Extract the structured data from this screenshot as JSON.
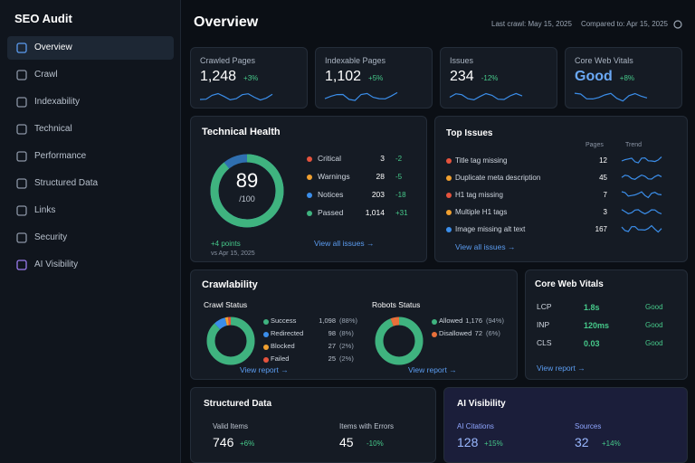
{
  "sidebar": {
    "title": "SEO Audit",
    "nav": [
      "Overview",
      "Crawl",
      "Indexability",
      "Technical",
      "Performance",
      "Structured Data",
      "Links",
      "Security",
      "AI Visibility"
    ]
  },
  "header": {
    "title": "Overview",
    "last_crawl": "Last crawl: May 15, 2025",
    "compared": "Compared to: Apr 15, 2025"
  },
  "kpis": [
    {
      "label": "Crawled Pages",
      "value": "1,248",
      "change": "+3%"
    },
    {
      "label": "Indexable Pages",
      "value": "1,102",
      "change": "+5%"
    },
    {
      "label": "Issues",
      "value": "234",
      "change": "-12%"
    },
    {
      "label": "Core Web Vitals",
      "value": "Good",
      "change": "+8%"
    }
  ],
  "technical_health": {
    "title": "Technical Health",
    "score": 89,
    "score_suffix": "/100",
    "delta": "+4 points",
    "delta_note": "vs Apr 15, 2025",
    "rows": [
      {
        "label": "Critical",
        "count": "3",
        "change": "-2",
        "color": "#e5533d"
      },
      {
        "label": "Warnings",
        "count": "28",
        "change": "-5",
        "color": "#f0a030"
      },
      {
        "label": "Notices",
        "count": "203",
        "change": "-18",
        "color": "#3b8eea"
      },
      {
        "label": "Passed",
        "count": "1,014",
        "change": "+31",
        "color": "#3fb37f"
      }
    ],
    "link": "View all issues →"
  },
  "top_issues": {
    "title": "Top Issues",
    "columns": [
      "Pages",
      "Trend"
    ],
    "rows": [
      {
        "label": "Title tag missing",
        "pages": "12",
        "color": "#e5533d"
      },
      {
        "label": "Duplicate meta description",
        "pages": "45",
        "color": "#f0a030"
      },
      {
        "label": "H1 tag missing",
        "pages": "7",
        "color": "#e5533d"
      },
      {
        "label": "Multiple H1 tags",
        "pages": "3",
        "color": "#f0a030"
      },
      {
        "label": "Image missing alt text",
        "pages": "167",
        "color": "#3b8eea"
      }
    ],
    "link": "View all issues →"
  },
  "crawlability": {
    "title": "Crawlability",
    "crawl_status": {
      "title": "Crawl Status",
      "items": [
        {
          "label": "Success",
          "count": "1,098",
          "share": {
            "value": 88,
            "label": "(88%)"
          },
          "color": "#3fb37f"
        },
        {
          "label": "Redirected",
          "count": "98",
          "share": {
            "value": 8,
            "label": "(8%)"
          },
          "color": "#3b8eea"
        },
        {
          "label": "Blocked",
          "count": "27",
          "share": {
            "value": 2,
            "label": "(2%)"
          },
          "color": "#f0a030"
        },
        {
          "label": "Failed",
          "count": "25",
          "share": {
            "value": 2,
            "label": "(2%)"
          },
          "color": "#e5533d"
        }
      ],
      "link": "View report →"
    },
    "robots_status": {
      "title": "Robots Status",
      "items": [
        {
          "label": "Allowed",
          "count": "1,176",
          "share": {
            "value": 94,
            "label": "(94%)"
          },
          "color": "#3fb37f"
        },
        {
          "label": "Disallowed",
          "count": "72",
          "share": {
            "value": 6,
            "label": "(6%)"
          },
          "color": "#e8703a"
        }
      ],
      "link": "View report →"
    }
  },
  "core_web_vitals": {
    "title": "Core Web Vitals",
    "rows": [
      {
        "metric": "LCP",
        "value": "1.8s",
        "status": "Good"
      },
      {
        "metric": "INP",
        "value": "120ms",
        "status": "Good"
      },
      {
        "metric": "CLS",
        "value": "0.03",
        "status": "Good"
      }
    ],
    "link": "View report →"
  },
  "structured_data": {
    "title": "Structured Data",
    "stats": [
      {
        "label": "Valid Items",
        "value": "746",
        "change": "+6%"
      },
      {
        "label": "Items with Errors",
        "value": "45",
        "change": "-10%"
      }
    ]
  },
  "ai_visibility": {
    "title": "AI Visibility",
    "stats": [
      {
        "label": "AI Citations",
        "value": "128",
        "change": "+15%"
      },
      {
        "label": "Sources",
        "value": "32",
        "change": "+14%"
      }
    ]
  }
}
